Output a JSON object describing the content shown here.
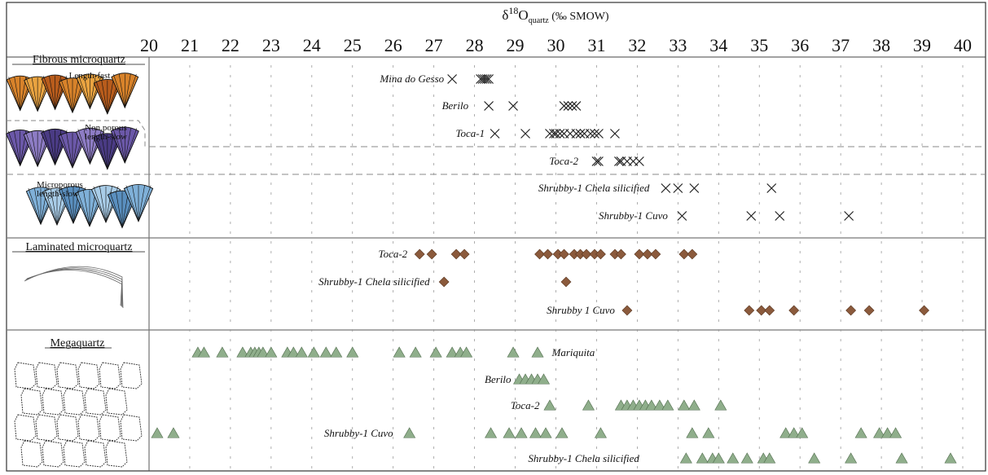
{
  "chart_data": {
    "type": "scatter",
    "title": "",
    "axis_title": {
      "prefix": "δ",
      "sup": "18",
      "base": "O",
      "sub": "quartz",
      "suffix": " (‰ SMOW)"
    },
    "xlim": [
      20,
      40
    ],
    "xticks": [
      20,
      21,
      22,
      23,
      24,
      25,
      26,
      27,
      28,
      29,
      30,
      31,
      32,
      33,
      34,
      35,
      36,
      37,
      38,
      39,
      40
    ],
    "colors": {
      "cross": "#222222",
      "diamond": "#8b5a3c",
      "triangle": "#8fae8b",
      "triangle_stroke": "#4f6b4c"
    },
    "groups": [
      {
        "title": "Fibrous microquartz",
        "subtypes": [
          {
            "label_lines": [
              "Length-fast"
            ],
            "colors": [
              "#d7822a",
              "#e9a340",
              "#b85c1c"
            ]
          },
          {
            "label_lines": [
              "Non porous",
              "length-slow"
            ],
            "colors": [
              "#6b58a8",
              "#8d7cc4",
              "#4a3b84"
            ]
          },
          {
            "label_lines": [
              "Microporous",
              "length-slow"
            ],
            "colors": [
              "#7fb0d8",
              "#a9cde8",
              "#5a8fbf"
            ]
          }
        ],
        "rows": [
          {
            "name": "Mina do Gesso",
            "marker": "cross",
            "label_end": 27.25,
            "values": [
              27.45,
              28.15,
              28.2,
              28.25,
              28.3,
              28.35
            ]
          },
          {
            "name": "Berilo",
            "marker": "cross",
            "label_end": 27.85,
            "values": [
              28.35,
              28.95,
              30.2,
              30.3,
              30.4,
              30.5
            ]
          },
          {
            "name": "Toca-1",
            "marker": "cross",
            "label_end": 28.25,
            "values": [
              28.5,
              29.25,
              29.85,
              29.95,
              30.0,
              30.1,
              30.2,
              30.35,
              30.5,
              30.6,
              30.7,
              30.85,
              30.95,
              31.05,
              31.45
            ]
          },
          {
            "name": "Toca-2",
            "marker": "cross",
            "label_end": 30.55,
            "values": [
              31.0,
              31.05,
              31.55,
              31.6,
              31.75,
              31.9,
              32.05
            ]
          },
          {
            "name": "Shrubby-1 Chela silicified",
            "marker": "cross",
            "label_end": 32.3,
            "values": [
              32.7,
              33.0,
              33.4,
              35.3
            ]
          },
          {
            "name": "Shrubby-1 Cuvo",
            "marker": "cross",
            "label_end": 32.75,
            "values": [
              33.1,
              34.8,
              35.5,
              37.2
            ]
          }
        ]
      },
      {
        "title": "Laminated microquartz",
        "rows": [
          {
            "name": "Toca-2",
            "marker": "diamond",
            "label_end": 26.35,
            "values": [
              26.65,
              26.95,
              27.55,
              27.75,
              29.6,
              29.8,
              30.05,
              30.2,
              30.45,
              30.6,
              30.75,
              30.95,
              31.1,
              31.45,
              31.6,
              32.05,
              32.25,
              32.45,
              33.15,
              33.35
            ]
          },
          {
            "name": "Shrubby-1 Chela silicified",
            "marker": "diamond",
            "label_end": 26.9,
            "values": [
              27.25,
              30.25
            ]
          },
          {
            "name": "Shrubby 1 Cuvo",
            "marker": "diamond",
            "label_end": 31.45,
            "values": [
              31.75,
              34.75,
              35.05,
              35.25,
              35.85,
              37.25,
              37.7,
              39.05
            ]
          }
        ]
      },
      {
        "title": "Megaquartz",
        "rows": [
          {
            "name": "Mariquita",
            "marker": "triangle",
            "label_start": 29.9,
            "values": [
              21.2,
              21.35,
              21.8,
              22.3,
              22.5,
              22.6,
              22.7,
              22.8,
              23.0,
              23.4,
              23.55,
              23.75,
              24.05,
              24.35,
              24.6,
              25.0,
              26.15,
              26.55,
              27.05,
              27.45,
              27.65,
              27.8,
              28.95,
              29.55
            ]
          },
          {
            "name": "Berilo",
            "marker": "triangle",
            "label_end": 28.9,
            "values": [
              29.1,
              29.25,
              29.4,
              29.55,
              29.7
            ]
          },
          {
            "name": "Toca-2",
            "marker": "triangle",
            "label_end": 29.6,
            "values": [
              29.85,
              30.8,
              31.6,
              31.75,
              31.9,
              32.05,
              32.2,
              32.35,
              32.55,
              32.75,
              33.15,
              33.4,
              34.05
            ]
          },
          {
            "name": "Shrubby-1 Cuvo",
            "marker": "triangle",
            "label_end": 26.0,
            "values": [
              20.2,
              20.6,
              26.4,
              28.4,
              28.85,
              29.15,
              29.5,
              29.75,
              30.15,
              31.1,
              33.35,
              33.75,
              35.65,
              35.85,
              36.05,
              37.5,
              37.95,
              38.15,
              38.35
            ]
          },
          {
            "name": "Shrubby-1 Chela silicified",
            "marker": "triangle",
            "label_end": 32.05,
            "values": [
              33.2,
              33.6,
              33.85,
              34.0,
              34.35,
              34.7,
              35.1,
              35.25,
              36.35,
              37.25,
              38.5,
              39.7
            ]
          }
        ]
      }
    ]
  }
}
